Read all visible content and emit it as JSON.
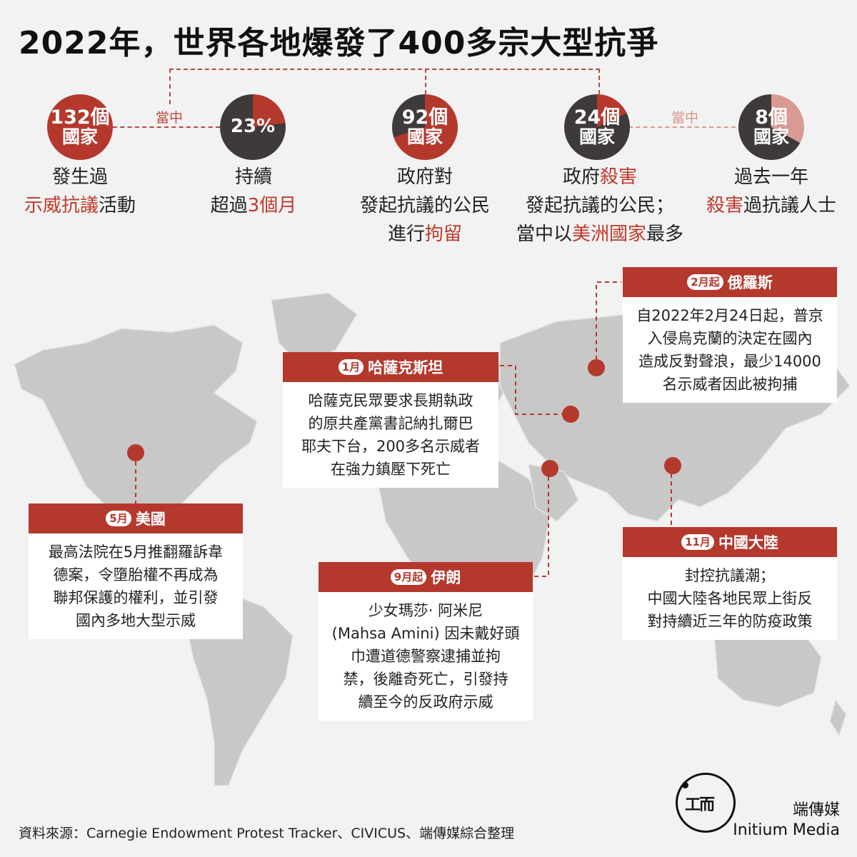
{
  "title": "2022年，世界各地爆發了400多宗大型抗爭",
  "colors": {
    "accent": "#b5382d",
    "dark": "#3e3a39",
    "pink": "#d99a93",
    "map": "#c8c8c8"
  },
  "connectors": {
    "label_left": "當中",
    "label_right": "當中"
  },
  "stats": [
    {
      "num": "132個",
      "unit": "國家",
      "caption_line1": "發生過",
      "caption_red": "示威抗議",
      "caption_rest": "活動"
    },
    {
      "pct": "23%",
      "fraction": 0.23,
      "caption_line1": "持續",
      "caption_line2_a": "超過",
      "caption_line2_red": "3個月"
    },
    {
      "num": "92個",
      "unit": "國家",
      "caption_line1": "政府對",
      "caption_line2": "發起抗議的公民",
      "caption_line3_a": "進行",
      "caption_line3_red": "拘留"
    },
    {
      "num": "24個",
      "unit": "國家",
      "caption_line1_a": "政府",
      "caption_line1_red": "殺害",
      "caption_line2": "發起抗議的公民；",
      "caption_line3_a": "當中以",
      "caption_line3_red": "美洲國家",
      "caption_line3_b": "最多"
    },
    {
      "num": "8個",
      "unit": "國家",
      "caption_line1": "過去一年",
      "caption_line2_red": "殺害",
      "caption_line2_b": "過抗議人士"
    }
  ],
  "cards": {
    "russia": {
      "month": "2月起",
      "country": "俄羅斯",
      "lines": [
        "自2022年2月24日起，普京",
        "入侵烏克蘭的決定在國內",
        "造成反對聲浪，最少14000",
        "名示威者因此被拘捕"
      ]
    },
    "kazakhstan": {
      "month": "1月",
      "country": "哈薩克斯坦",
      "lines": [
        "哈薩克民眾要求長期執政",
        "的原共產黨書記納扎爾巴",
        "耶夫下台，200多名示威者",
        "在強力鎮壓下死亡"
      ]
    },
    "usa": {
      "month": "5月",
      "country": "美國",
      "lines": [
        "最高法院在5月推翻羅訴韋",
        "德案，令墮胎權不再成為",
        "聯邦保護的權利，並引發",
        "國內多地大型示威"
      ]
    },
    "iran": {
      "month": "9月起",
      "country": "伊朗",
      "lines": [
        "少女瑪莎· 阿米尼",
        "(Mahsa Amini) 因未戴好頭",
        "巾遭道德警察逮捕並拘",
        "禁，後離奇死亡，引發持",
        "續至今的反政府示威"
      ]
    },
    "china": {
      "month": "11月",
      "country": "中國大陸",
      "lines": [
        "封控抗議潮；",
        "中國大陸各地民眾上街反",
        "對持續近三年的防疫政策"
      ]
    }
  },
  "source": "資料來源：Carnegie Endowment Protest Tracker、CIVICUS、端傳媒綜合整理",
  "brand": {
    "zh": "端傳媒",
    "en": "Initium Media",
    "logo_glyphs": "工而"
  }
}
